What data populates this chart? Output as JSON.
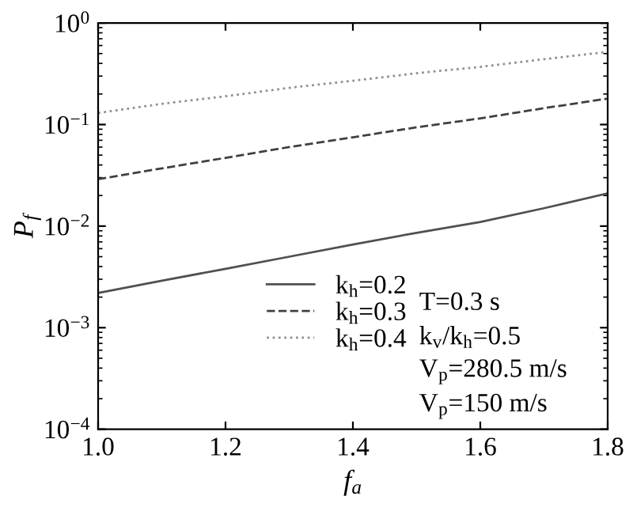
{
  "chart_data": {
    "type": "line",
    "xlabel": "f$_{a}$",
    "ylabel": "P$_{f}$",
    "log": "y",
    "x": [
      1.0,
      1.1,
      1.2,
      1.3,
      1.4,
      1.5,
      1.6,
      1.7,
      1.8
    ],
    "series": [
      {
        "name": "k$_{h}$=0.2",
        "color": "#505050",
        "line_style": "solid",
        "values": [
          0.0022,
          0.0029,
          0.0038,
          0.005,
          0.0066,
          0.0086,
          0.011,
          0.015,
          0.021
        ]
      },
      {
        "name": "k$_{h}$=0.3",
        "color": "#404040",
        "line_style": "dashed",
        "values": [
          0.029,
          0.037,
          0.047,
          0.06,
          0.075,
          0.094,
          0.115,
          0.145,
          0.18
        ]
      },
      {
        "name": "k$_{h}$=0.4",
        "color": "#909090",
        "line_style": "dotted",
        "values": [
          0.13,
          0.16,
          0.19,
          0.23,
          0.27,
          0.32,
          0.37,
          0.44,
          0.52
        ]
      }
    ],
    "xlim": [
      1.0,
      1.8
    ],
    "xticks": [
      {
        "value": 1.0,
        "label": "1.0"
      },
      1.2,
      1.4,
      1.6,
      1.8
    ],
    "ylim": [
      0.0001,
      1
    ],
    "yticks": [
      {
        "value": 0.0001,
        "label": "10$^{−4}$"
      },
      {
        "value": 0.001,
        "label": "10$^{−3}$"
      },
      {
        "value": 0.01,
        "label": "10$^{−2}$"
      },
      {
        "value": 0.1,
        "label": "10$^{−1}$"
      },
      {
        "value": 1,
        "label": "10$^{0}$"
      }
    ],
    "legend": "bottom",
    "grid": false,
    "annotations": [
      "T=0.3 s",
      "k$_{v}$/k$_{h}$=0.5",
      "V$_{p}$=280.5 m/s",
      "V$_{p}$=150 m/s"
    ]
  }
}
